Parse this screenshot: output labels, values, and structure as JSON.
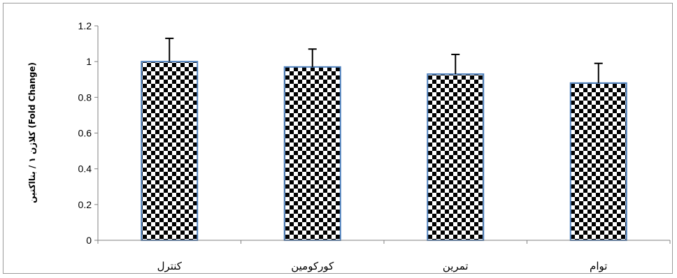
{
  "chart_data": {
    "type": "bar",
    "categories": [
      "کنترل",
      "کورکومین",
      "تمرین",
      "توام"
    ],
    "values": [
      1.0,
      0.97,
      0.93,
      0.88
    ],
    "error_upper": [
      0.13,
      0.1,
      0.11,
      0.11
    ],
    "ylim": [
      0,
      1.2
    ],
    "yticks": [
      "0",
      "0.2",
      "0.4",
      "0.6",
      "0.8",
      "1",
      "1.2"
    ],
    "ylabel": "کلاژن ۱ / بتااکتین (Fold Change)",
    "xlabel": "",
    "title": "",
    "grid": false,
    "colors": {
      "bar_pattern_dark": "#000000",
      "bar_pattern_light": "#ffffff",
      "bar_border": "#4f81bd",
      "axis": "#808080",
      "error_bar": "#000000"
    }
  }
}
